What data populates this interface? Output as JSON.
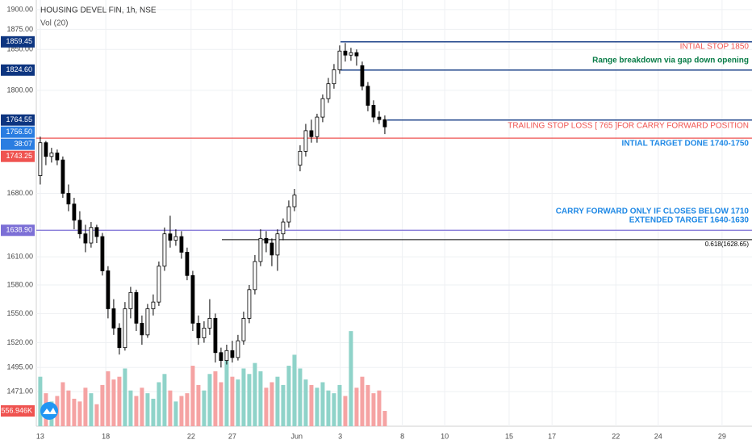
{
  "chart_data": {
    "type": "candlestick",
    "title": "HOUSING DEVEL FIN, 1h, NSE",
    "subtitle": "Vol (20)",
    "log_scale": true,
    "grid": true,
    "up_color": "#ffffff",
    "down_color": "#000000",
    "volume_up_color": "#8fd3c9",
    "volume_down_color": "#f5a3a3",
    "ylim": [
      1437.3,
      1912.3
    ],
    "yticks": [
      {
        "value": 1900,
        "label": "1900.00"
      },
      {
        "value": 1875,
        "label": "1875.00"
      },
      {
        "value": 1850,
        "label": "1850.00"
      },
      {
        "value": 1800,
        "label": "1800.00"
      },
      {
        "value": 1680,
        "label": "1680.00"
      },
      {
        "value": 1610,
        "label": "1610.00"
      },
      {
        "value": 1580,
        "label": "1580.00"
      },
      {
        "value": 1550,
        "label": "1550.00"
      },
      {
        "value": 1520,
        "label": "1520.00"
      },
      {
        "value": 1495,
        "label": "1495.00"
      },
      {
        "value": 1471,
        "label": "1471.00"
      }
    ],
    "xlim": [
      -0.7,
      126
    ],
    "xticks": [
      {
        "value": 0,
        "label": "13"
      },
      {
        "value": 11.6,
        "label": "18"
      },
      {
        "value": 26.7,
        "label": "22"
      },
      {
        "value": 34,
        "label": "27"
      },
      {
        "value": 45.4,
        "label": "Jun"
      },
      {
        "value": 53.1,
        "label": "3"
      },
      {
        "value": 64.1,
        "label": "8"
      },
      {
        "value": 71.6,
        "label": "10"
      },
      {
        "value": 83,
        "label": "15"
      },
      {
        "value": 90.6,
        "label": "17"
      },
      {
        "value": 101.9,
        "label": "22"
      },
      {
        "value": 109.4,
        "label": "24"
      },
      {
        "value": 120.7,
        "label": "29"
      }
    ],
    "ohlc": [
      [
        1700,
        1745,
        1690,
        1738
      ],
      [
        1738,
        1740,
        1712,
        1722
      ],
      [
        1722,
        1732,
        1715,
        1726
      ],
      [
        1726,
        1730,
        1712,
        1718
      ],
      [
        1718,
        1722,
        1675,
        1680
      ],
      [
        1680,
        1690,
        1660,
        1668
      ],
      [
        1668,
        1675,
        1640,
        1650
      ],
      [
        1650,
        1660,
        1630,
        1635
      ],
      [
        1635,
        1645,
        1615,
        1625
      ],
      [
        1625,
        1648,
        1620,
        1642
      ],
      [
        1642,
        1645,
        1625,
        1632
      ],
      [
        1632,
        1636,
        1590,
        1595
      ],
      [
        1595,
        1600,
        1545,
        1555
      ],
      [
        1555,
        1565,
        1528,
        1535
      ],
      [
        1535,
        1540,
        1508,
        1515
      ],
      [
        1515,
        1562,
        1512,
        1555
      ],
      [
        1555,
        1578,
        1545,
        1572
      ],
      [
        1572,
        1575,
        1532,
        1540
      ],
      [
        1540,
        1548,
        1518,
        1528
      ],
      [
        1528,
        1560,
        1525,
        1555
      ],
      [
        1555,
        1570,
        1548,
        1562
      ],
      [
        1562,
        1605,
        1558,
        1600
      ],
      [
        1600,
        1642,
        1595,
        1635
      ],
      [
        1635,
        1655,
        1620,
        1628
      ],
      [
        1628,
        1640,
        1622,
        1632
      ],
      [
        1632,
        1638,
        1608,
        1615
      ],
      [
        1615,
        1620,
        1585,
        1590
      ],
      [
        1590,
        1595,
        1532,
        1540
      ],
      [
        1540,
        1548,
        1518,
        1525
      ],
      [
        1525,
        1542,
        1520,
        1535
      ],
      [
        1535,
        1565,
        1528,
        1545
      ],
      [
        1545,
        1550,
        1500,
        1510
      ],
      [
        1510,
        1515,
        1495,
        1502
      ],
      [
        1502,
        1518,
        1498,
        1512
      ],
      [
        1512,
        1522,
        1500,
        1505
      ],
      [
        1505,
        1528,
        1502,
        1522
      ],
      [
        1522,
        1552,
        1518,
        1545
      ],
      [
        1545,
        1580,
        1540,
        1575
      ],
      [
        1575,
        1612,
        1570,
        1605
      ],
      [
        1605,
        1640,
        1600,
        1630
      ],
      [
        1630,
        1638,
        1615,
        1625
      ],
      [
        1625,
        1630,
        1600,
        1612
      ],
      [
        1612,
        1640,
        1595,
        1635
      ],
      [
        1635,
        1652,
        1628,
        1648
      ],
      [
        1648,
        1672,
        1642,
        1665
      ],
      [
        1665,
        1685,
        1660,
        1678
      ],
      [
        1712,
        1735,
        1705,
        1728
      ],
      [
        1728,
        1760,
        1722,
        1752
      ],
      [
        1752,
        1765,
        1738,
        1745
      ],
      [
        1745,
        1772,
        1738,
        1768
      ],
      [
        1768,
        1795,
        1762,
        1790
      ],
      [
        1790,
        1815,
        1785,
        1808
      ],
      [
        1808,
        1832,
        1802,
        1825
      ],
      [
        1825,
        1855,
        1820,
        1848
      ],
      [
        1848,
        1858,
        1835,
        1843
      ],
      [
        1843,
        1852,
        1836,
        1846
      ],
      [
        1846,
        1850,
        1830,
        1842
      ],
      [
        1830,
        1835,
        1800,
        1805
      ],
      [
        1805,
        1810,
        1775,
        1782
      ],
      [
        1782,
        1788,
        1762,
        1768
      ],
      [
        1768,
        1775,
        1760,
        1765
      ],
      [
        1765,
        1770,
        1748,
        1756.5
      ]
    ],
    "volume_lim": [
      0,
      15500000
    ],
    "volumes": [
      1800000,
      1200000,
      900000,
      1100000,
      1600000,
      1300000,
      1000000,
      900000,
      1400000,
      1200000,
      800000,
      1500000,
      2000000,
      1700000,
      1800000,
      2100000,
      1300000,
      1100000,
      1400000,
      1200000,
      1000000,
      1600000,
      1900000,
      1300000,
      900000,
      1100000,
      1200000,
      2200000,
      1500000,
      1300000,
      1900000,
      2000000,
      1600000,
      2400000,
      1800000,
      1700000,
      2100000,
      1900000,
      2300000,
      2000000,
      1400000,
      1600000,
      1800000,
      1500000,
      2200000,
      2600000,
      2100000,
      1700000,
      1500000,
      1400000,
      1600000,
      1300000,
      1200000,
      1500000,
      1100000,
      3460000,
      1400000,
      1800000,
      1500000,
      1200000,
      1300000,
      556946
    ],
    "volume_badge": {
      "value": 556946,
      "label": "556.946K",
      "color": "#ef5350"
    },
    "levels": [
      {
        "value": 1859.45,
        "label": "1859.45",
        "color": "#0d3580",
        "line": true
      },
      {
        "value": 1824.6,
        "label": "1824.60",
        "color": "#0d3580",
        "line": true
      },
      {
        "value": 1764.55,
        "label": "1764.55",
        "color": "#0d3580",
        "line": true
      },
      {
        "value": 1756.5,
        "label": "1756.50",
        "color": "#2a7de1",
        "line": false
      },
      {
        "value": 1743.25,
        "label": "1743.25",
        "color": "#ef5350",
        "line": true
      },
      {
        "value": 1638.9,
        "label": "1638.90",
        "color": "#7c6fd6",
        "line": true
      }
    ],
    "countdown": "38:07",
    "fib": {
      "value": 1628.65,
      "label": "0.618(1628.65)",
      "color": "#000000"
    },
    "annotations": [
      {
        "text": "INTIAL STOP 1850",
        "color": "#ef5350",
        "bold": false
      },
      {
        "text": "Range breakdown via gap down opening",
        "color": "#0a7d48",
        "bold": true
      },
      {
        "text": "TRAILING STOP  LOSS [ 765 ]FOR CARRY FORWARD POSITION",
        "color": "#ef5350",
        "bold": false
      },
      {
        "text": "INTIAL TARGET  DONE 1740-1750",
        "color": "#1e88e5",
        "bold": true
      },
      {
        "text": "CARRY FORWARD ONLY IF CLOSES BELOW 1710",
        "color": "#1e88e5",
        "bold": true
      },
      {
        "text": "EXTENDED TARGET 1640-1630",
        "color": "#1e88e5",
        "bold": true
      }
    ]
  }
}
